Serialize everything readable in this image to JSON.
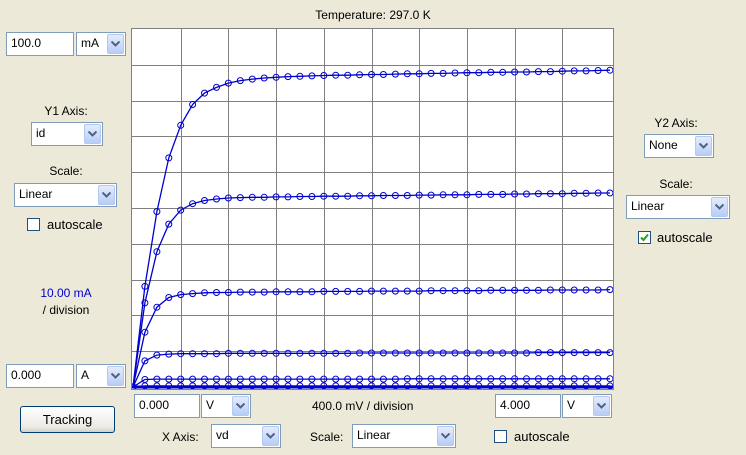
{
  "title": "Temperature: 297.0 K",
  "y1": {
    "max_value": "100.0",
    "max_unit": "mA",
    "axis_label": "Y1 Axis:",
    "axis_value": "id",
    "scale_label": "Scale:",
    "scale_value": "Linear",
    "autoscale_label": "autoscale",
    "autoscale_checked": false,
    "division_value": "10.00 mA",
    "division_suffix": "/ division",
    "min_value": "0.000",
    "min_unit": "A"
  },
  "y2": {
    "axis_label": "Y2 Axis:",
    "axis_value": "None",
    "scale_label": "Scale:",
    "scale_value": "Linear",
    "autoscale_label": "autoscale",
    "autoscale_checked": true
  },
  "x": {
    "min_value": "0.000",
    "min_unit": "V",
    "division_text": "400.0 mV / division",
    "max_value": "4.000",
    "max_unit": "V",
    "axis_label": "X Axis:",
    "axis_value": "vd",
    "scale_label": "Scale:",
    "scale_value": "Linear",
    "autoscale_label": "autoscale",
    "autoscale_checked": false
  },
  "tracking_label": "Tracking",
  "colors": {
    "curve": "#0000cc",
    "grid": "#808080",
    "check": "#21a121"
  },
  "icons": {
    "dropdown": "chevron-down-icon",
    "check": "checkmark-icon"
  },
  "chart_data": {
    "type": "line",
    "xlim": [
      0,
      4
    ],
    "ylim": [
      0,
      100
    ],
    "x_divisions": 10,
    "y_divisions": 10,
    "xlabel": "vd",
    "ylabel": "id",
    "grid": true,
    "x": [
      0,
      0.1,
      0.2,
      0.3,
      0.4,
      0.5,
      0.6,
      0.7,
      0.8,
      0.9,
      1.0,
      1.1,
      1.2,
      1.3,
      1.4,
      1.5,
      1.6,
      1.7,
      1.8,
      1.9,
      2.0,
      2.1,
      2.2,
      2.3,
      2.4,
      2.5,
      2.6,
      2.7,
      2.8,
      2.9,
      3.0,
      3.1,
      3.2,
      3.3,
      3.4,
      3.5,
      3.6,
      3.7,
      3.8,
      3.9,
      4.0
    ],
    "series": [
      {
        "sat": 88.5,
        "values": [
          0,
          28.1,
          49.0,
          64.0,
          73.1,
          78.9,
          82.1,
          83.7,
          84.9,
          85.6,
          86.0,
          86.3,
          86.5,
          86.7,
          86.8,
          86.9,
          87.0,
          87.1,
          87.1,
          87.2,
          87.3,
          87.3,
          87.4,
          87.5,
          87.5,
          87.6,
          87.6,
          87.7,
          87.8,
          87.8,
          87.9,
          87.9,
          88.0,
          88.0,
          88.1,
          88.1,
          88.2,
          88.3,
          88.3,
          88.4,
          88.5
        ]
      },
      {
        "sat": 54.2,
        "values": [
          0,
          23.5,
          37.8,
          45.5,
          49.4,
          51.2,
          52.1,
          52.5,
          52.8,
          52.9,
          53.0,
          53.0,
          53.1,
          53.1,
          53.2,
          53.2,
          53.3,
          53.3,
          53.3,
          53.4,
          53.4,
          53.5,
          53.5,
          53.5,
          53.6,
          53.6,
          53.7,
          53.7,
          53.7,
          53.8,
          53.8,
          53.8,
          53.9,
          53.9,
          54.0,
          54.0,
          54.0,
          54.1,
          54.1,
          54.2,
          54.2
        ]
      },
      {
        "sat": 27.2,
        "values": [
          0,
          15.3,
          22.3,
          25.0,
          25.8,
          26.1,
          26.3,
          26.4,
          26.4,
          26.5,
          26.5,
          26.5,
          26.6,
          26.6,
          26.6,
          26.6,
          26.7,
          26.7,
          26.7,
          26.7,
          26.8,
          26.8,
          26.8,
          26.8,
          26.8,
          26.9,
          26.9,
          26.9,
          26.9,
          26.9,
          27.0,
          27.0,
          27.0,
          27.0,
          27.0,
          27.1,
          27.1,
          27.1,
          27.1,
          27.1,
          27.2
        ]
      },
      {
        "sat": 9.6,
        "values": [
          0,
          7.3,
          8.9,
          9.2,
          9.3,
          9.3,
          9.3,
          9.3,
          9.4,
          9.4,
          9.4,
          9.4,
          9.4,
          9.4,
          9.4,
          9.4,
          9.4,
          9.4,
          9.4,
          9.5,
          9.5,
          9.5,
          9.5,
          9.5,
          9.5,
          9.5,
          9.5,
          9.5,
          9.5,
          9.5,
          9.5,
          9.5,
          9.5,
          9.5,
          9.6,
          9.6,
          9.6,
          9.6,
          9.6,
          9.6,
          9.6
        ]
      },
      {
        "sat": 2.3,
        "values": [
          0,
          2.1,
          2.2,
          2.2,
          2.2,
          2.2,
          2.2,
          2.2,
          2.2,
          2.2,
          2.2,
          2.2,
          2.2,
          2.2,
          2.2,
          2.2,
          2.2,
          2.2,
          2.2,
          2.2,
          2.2,
          2.2,
          2.2,
          2.3,
          2.3,
          2.3,
          2.3,
          2.3,
          2.3,
          2.3,
          2.3,
          2.3,
          2.3,
          2.3,
          2.3,
          2.3,
          2.3,
          2.3,
          2.3,
          2.3,
          2.3
        ]
      },
      {
        "sat": 0.3,
        "values": [
          0,
          0.3,
          0.3,
          0.3,
          0.3,
          0.3,
          0.3,
          0.3,
          0.3,
          0.3,
          0.3,
          0.3,
          0.3,
          0.3,
          0.3,
          0.3,
          0.3,
          0.3,
          0.3,
          0.3,
          0.3,
          0.3,
          0.3,
          0.3,
          0.3,
          0.3,
          0.3,
          0.3,
          0.3,
          0.3,
          0.3,
          0.3,
          0.3,
          0.3,
          0.3,
          0.3,
          0.3,
          0.3,
          0.3,
          0.3,
          0.3
        ]
      }
    ]
  }
}
